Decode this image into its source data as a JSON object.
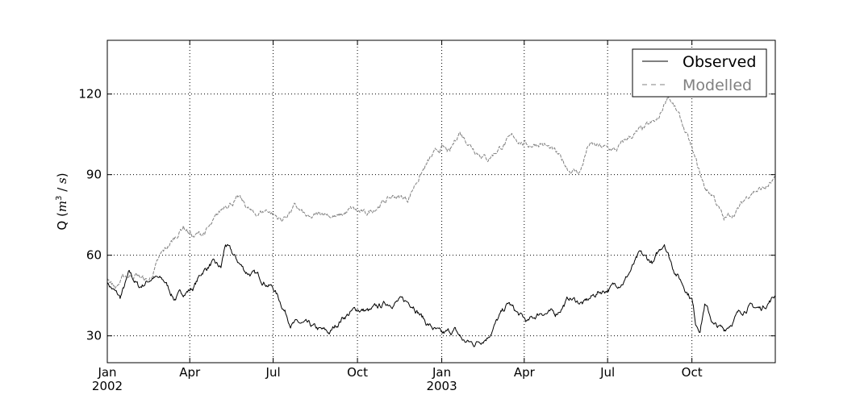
{
  "chart_data": {
    "type": "line",
    "xlabel": "",
    "ylabel": "Q ($m^3$ / $s$)",
    "ylabel_parts": {
      "pre": "Q (",
      "m": "m",
      "exp": "3",
      "mid": " / ",
      "s": "s",
      "post": ")"
    },
    "xlim": [
      "2002-01-01",
      "2003-12-31"
    ],
    "ylim": [
      20,
      140
    ],
    "y_ticks": [
      30,
      60,
      90,
      120
    ],
    "x_ticks": [
      {
        "date": "2002-01-01",
        "label": "Jan",
        "sublabel": "2002"
      },
      {
        "date": "2002-04-01",
        "label": "Apr",
        "sublabel": ""
      },
      {
        "date": "2002-07-01",
        "label": "Jul",
        "sublabel": ""
      },
      {
        "date": "2002-10-01",
        "label": "Oct",
        "sublabel": ""
      },
      {
        "date": "2003-01-01",
        "label": "Jan",
        "sublabel": "2003"
      },
      {
        "date": "2003-04-01",
        "label": "Apr",
        "sublabel": ""
      },
      {
        "date": "2003-07-01",
        "label": "Jul",
        "sublabel": ""
      },
      {
        "date": "2003-10-01",
        "label": "Oct",
        "sublabel": ""
      }
    ],
    "grid": true,
    "legend_position": "top-right",
    "series": [
      {
        "name": "Observed",
        "color": "#000000",
        "style": "solid",
        "points": [
          [
            "2002-01-01",
            50
          ],
          [
            "2002-01-10",
            46
          ],
          [
            "2002-01-15",
            44
          ],
          [
            "2002-01-25",
            53
          ],
          [
            "2002-02-05",
            48
          ],
          [
            "2002-02-20",
            52
          ],
          [
            "2002-03-05",
            50
          ],
          [
            "2002-03-15",
            44
          ],
          [
            "2002-03-25",
            46
          ],
          [
            "2002-04-05",
            48
          ],
          [
            "2002-04-15",
            54
          ],
          [
            "2002-04-25",
            57
          ],
          [
            "2002-05-05",
            55
          ],
          [
            "2002-05-10",
            64
          ],
          [
            "2002-05-20",
            59
          ],
          [
            "2002-06-01",
            54
          ],
          [
            "2002-06-15",
            52
          ],
          [
            "2002-07-01",
            48
          ],
          [
            "2002-07-10",
            42
          ],
          [
            "2002-07-20",
            35
          ],
          [
            "2002-08-05",
            34
          ],
          [
            "2002-08-20",
            32
          ],
          [
            "2002-09-01",
            31
          ],
          [
            "2002-09-15",
            37
          ],
          [
            "2002-10-01",
            40
          ],
          [
            "2002-10-15",
            39
          ],
          [
            "2002-11-01",
            42
          ],
          [
            "2002-11-15",
            43
          ],
          [
            "2002-12-01",
            42
          ],
          [
            "2002-12-15",
            35
          ],
          [
            "2003-01-01",
            30
          ],
          [
            "2003-01-15",
            32
          ],
          [
            "2003-01-25",
            28
          ],
          [
            "2003-02-05",
            27
          ],
          [
            "2003-02-20",
            30
          ],
          [
            "2003-03-05",
            37
          ],
          [
            "2003-03-15",
            42
          ],
          [
            "2003-03-25",
            38
          ],
          [
            "2003-04-05",
            35
          ],
          [
            "2003-04-20",
            39
          ],
          [
            "2003-05-05",
            38
          ],
          [
            "2003-05-20",
            44
          ],
          [
            "2003-06-05",
            42
          ],
          [
            "2003-06-20",
            46
          ],
          [
            "2003-07-05",
            48
          ],
          [
            "2003-07-20",
            51
          ],
          [
            "2003-08-05",
            60
          ],
          [
            "2003-08-20",
            57
          ],
          [
            "2003-09-01",
            65
          ],
          [
            "2003-09-10",
            56
          ],
          [
            "2003-09-20",
            50
          ],
          [
            "2003-10-01",
            44
          ],
          [
            "2003-10-05",
            35
          ],
          [
            "2003-10-10",
            33
          ],
          [
            "2003-10-15",
            42
          ],
          [
            "2003-10-25",
            34
          ],
          [
            "2003-11-05",
            32
          ],
          [
            "2003-11-20",
            38
          ],
          [
            "2003-12-01",
            41
          ],
          [
            "2003-12-15",
            40
          ],
          [
            "2003-12-31",
            45
          ]
        ]
      },
      {
        "name": "Modelled",
        "color": "#808080",
        "style": "dashed",
        "points": [
          [
            "2002-01-01",
            52
          ],
          [
            "2002-01-10",
            48
          ],
          [
            "2002-01-20",
            52
          ],
          [
            "2002-02-01",
            53
          ],
          [
            "2002-02-15",
            50
          ],
          [
            "2002-03-01",
            60
          ],
          [
            "2002-03-15",
            66
          ],
          [
            "2002-03-25",
            71
          ],
          [
            "2002-04-05",
            67
          ],
          [
            "2002-04-15",
            68
          ],
          [
            "2002-04-25",
            71
          ],
          [
            "2002-05-10",
            79
          ],
          [
            "2002-05-25",
            81
          ],
          [
            "2002-06-10",
            75
          ],
          [
            "2002-06-25",
            77
          ],
          [
            "2002-07-10",
            73
          ],
          [
            "2002-07-25",
            78
          ],
          [
            "2002-08-10",
            73
          ],
          [
            "2002-08-25",
            76
          ],
          [
            "2002-09-10",
            74
          ],
          [
            "2002-09-25",
            77
          ],
          [
            "2002-10-10",
            75
          ],
          [
            "2002-10-25",
            79
          ],
          [
            "2002-11-10",
            82
          ],
          [
            "2002-11-25",
            81
          ],
          [
            "2002-12-05",
            88
          ],
          [
            "2002-12-20",
            96
          ],
          [
            "2003-01-01",
            100
          ],
          [
            "2003-01-10",
            98
          ],
          [
            "2003-01-20",
            106
          ],
          [
            "2003-02-05",
            100
          ],
          [
            "2003-02-20",
            96
          ],
          [
            "2003-03-05",
            100
          ],
          [
            "2003-03-20",
            104
          ],
          [
            "2003-04-05",
            101
          ],
          [
            "2003-04-20",
            102
          ],
          [
            "2003-05-05",
            98
          ],
          [
            "2003-05-20",
            92
          ],
          [
            "2003-06-01",
            91
          ],
          [
            "2003-06-10",
            101
          ],
          [
            "2003-06-25",
            100
          ],
          [
            "2003-07-10",
            99
          ],
          [
            "2003-07-25",
            104
          ],
          [
            "2003-08-10",
            107
          ],
          [
            "2003-08-25",
            110
          ],
          [
            "2003-09-05",
            120
          ],
          [
            "2003-09-15",
            113
          ],
          [
            "2003-09-25",
            105
          ],
          [
            "2003-10-05",
            95
          ],
          [
            "2003-10-15",
            85
          ],
          [
            "2003-10-25",
            82
          ],
          [
            "2003-11-05",
            73
          ],
          [
            "2003-11-20",
            77
          ],
          [
            "2003-12-05",
            84
          ],
          [
            "2003-12-20",
            85
          ],
          [
            "2003-12-31",
            88
          ]
        ]
      }
    ]
  }
}
